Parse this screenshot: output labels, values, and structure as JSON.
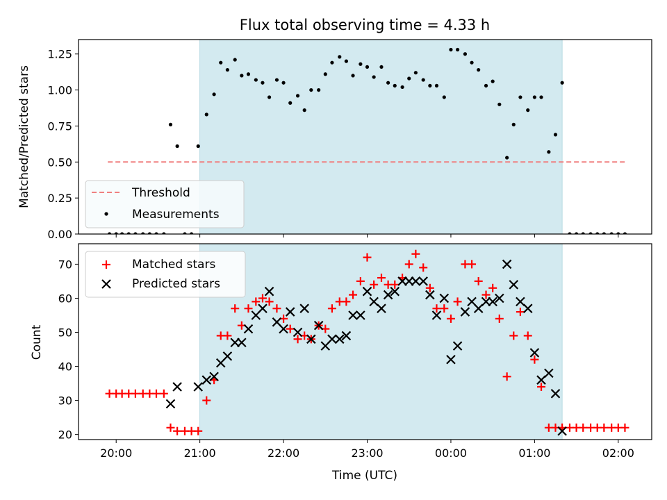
{
  "chart_data": [
    {
      "type": "scatter",
      "title": "Flux total observing time = 4.33 h",
      "ylabel": "Matched/Predicted stars",
      "ylim": [
        0,
        1.35
      ],
      "yticks": [
        "0.00",
        "0.25",
        "0.50",
        "0.75",
        "1.00",
        "1.25"
      ],
      "ytick_values": [
        0,
        0.25,
        0.5,
        0.75,
        1.0,
        1.25
      ],
      "shaded_span": {
        "x_start_hours": 21.0,
        "x_end_hours": 25.33,
        "color": "#d3eaf0"
      },
      "threshold": {
        "name": "Threshold",
        "y": 0.5,
        "x_range_hours": [
          19.9,
          26.1
        ],
        "color": "#f08080"
      },
      "legend": {
        "placement": "lower-left",
        "entries": [
          "Threshold",
          "Measurements"
        ]
      },
      "series": [
        {
          "name": "Measurements",
          "color": "#000000",
          "x_hours": [
            19.92,
            20.0,
            20.07,
            20.15,
            20.23,
            20.32,
            20.4,
            20.48,
            20.57,
            20.65,
            20.73,
            20.82,
            20.9,
            20.98,
            21.08,
            21.17,
            21.25,
            21.33,
            21.42,
            21.5,
            21.58,
            21.67,
            21.75,
            21.83,
            21.92,
            22.0,
            22.08,
            22.17,
            22.25,
            22.33,
            22.42,
            22.5,
            22.58,
            22.67,
            22.75,
            22.83,
            22.92,
            23.0,
            23.08,
            23.17,
            23.25,
            23.33,
            23.42,
            23.5,
            23.58,
            23.67,
            23.75,
            23.83,
            23.92,
            24.0,
            24.08,
            24.17,
            24.25,
            24.33,
            24.42,
            24.5,
            24.58,
            24.67,
            24.75,
            24.83,
            24.92,
            25.0,
            25.08,
            25.17,
            25.25,
            25.33,
            25.42,
            25.5,
            25.58,
            25.67,
            25.75,
            25.83,
            25.92,
            26.0,
            26.08
          ],
          "y": [
            0,
            0,
            0,
            0,
            0,
            0,
            0,
            0,
            0,
            0.76,
            0.61,
            0,
            0,
            0.61,
            0.83,
            0.97,
            1.19,
            1.14,
            1.21,
            1.1,
            1.11,
            1.07,
            1.05,
            0.95,
            1.07,
            1.05,
            0.91,
            0.96,
            0.86,
            1.0,
            1.0,
            1.11,
            1.19,
            1.23,
            1.2,
            1.1,
            1.18,
            1.16,
            1.09,
            1.16,
            1.05,
            1.03,
            1.02,
            1.08,
            1.12,
            1.07,
            1.03,
            1.03,
            0.95,
            1.28,
            1.28,
            1.25,
            1.19,
            1.14,
            1.03,
            1.06,
            0.9,
            0.53,
            0.76,
            0.95,
            0.86,
            0.95,
            0.95,
            0.57,
            0.69,
            1.05,
            0,
            0,
            0,
            0,
            0,
            0,
            0,
            0,
            0
          ]
        }
      ]
    },
    {
      "type": "scatter",
      "xlabel": "Time (UTC)",
      "ylabel": "Count",
      "ylim": [
        18.5,
        76
      ],
      "yticks": [
        "20",
        "30",
        "40",
        "50",
        "60",
        "70"
      ],
      "ytick_values": [
        20,
        30,
        40,
        50,
        60,
        70
      ],
      "xlim_hours": [
        19.55,
        26.4
      ],
      "xticks": [
        "20:00",
        "21:00",
        "22:00",
        "23:00",
        "00:00",
        "01:00",
        "02:00"
      ],
      "xtick_hours": [
        20,
        21,
        22,
        23,
        24,
        25,
        26
      ],
      "shaded_span": {
        "x_start_hours": 21.0,
        "x_end_hours": 25.33,
        "color": "#d3eaf0"
      },
      "legend": {
        "placement": "upper-left",
        "entries": [
          "Matched stars",
          "Predicted stars"
        ]
      },
      "series": [
        {
          "name": "Matched stars",
          "marker": "plus",
          "color": "#ff0000",
          "x_hours": [
            19.92,
            20.0,
            20.07,
            20.15,
            20.23,
            20.32,
            20.4,
            20.48,
            20.57,
            20.65,
            20.73,
            20.82,
            20.9,
            20.98,
            21.08,
            21.17,
            21.25,
            21.33,
            21.42,
            21.5,
            21.58,
            21.67,
            21.75,
            21.83,
            21.92,
            22.0,
            22.08,
            22.17,
            22.25,
            22.33,
            22.42,
            22.5,
            22.58,
            22.67,
            22.75,
            22.83,
            22.92,
            23.0,
            23.08,
            23.17,
            23.25,
            23.33,
            23.42,
            23.5,
            23.58,
            23.67,
            23.75,
            23.83,
            23.92,
            24.0,
            24.08,
            24.17,
            24.25,
            24.33,
            24.42,
            24.5,
            24.58,
            24.67,
            24.75,
            24.83,
            24.92,
            25.0,
            25.08,
            25.17,
            25.25,
            25.33,
            25.42,
            25.5,
            25.58,
            25.67,
            25.75,
            25.83,
            25.92,
            26.0,
            26.08
          ],
          "y": [
            32,
            32,
            32,
            32,
            32,
            32,
            32,
            32,
            32,
            22,
            21,
            21,
            21,
            21,
            30,
            36,
            49,
            49,
            57,
            52,
            57,
            59,
            60,
            59,
            57,
            54,
            51,
            48,
            49,
            48,
            52,
            51,
            57,
            59,
            59,
            61,
            65,
            72,
            64,
            66,
            64,
            64,
            66,
            70,
            73,
            69,
            63,
            57,
            57,
            54,
            59,
            70,
            70,
            65,
            61,
            63,
            54,
            37,
            49,
            56,
            49,
            42,
            34,
            22,
            22,
            22,
            22,
            22,
            22,
            22,
            22,
            22,
            22,
            22,
            22
          ]
        },
        {
          "name": "Predicted stars",
          "marker": "x",
          "color": "#000000",
          "x_hours": [
            20.65,
            20.73,
            20.98,
            21.08,
            21.17,
            21.25,
            21.33,
            21.42,
            21.5,
            21.58,
            21.67,
            21.75,
            21.83,
            21.92,
            22.0,
            22.08,
            22.17,
            22.25,
            22.33,
            22.42,
            22.5,
            22.58,
            22.67,
            22.75,
            22.83,
            22.92,
            23.0,
            23.08,
            23.17,
            23.25,
            23.33,
            23.42,
            23.5,
            23.58,
            23.67,
            23.75,
            23.83,
            23.92,
            24.0,
            24.08,
            24.17,
            24.25,
            24.33,
            24.42,
            24.5,
            24.58,
            24.67,
            24.75,
            24.83,
            24.92,
            25.0,
            25.08,
            25.17,
            25.25,
            25.33
          ],
          "y": [
            29,
            34,
            34,
            36,
            37,
            41,
            43,
            47,
            47,
            51,
            55,
            57,
            62,
            53,
            51,
            56,
            50,
            57,
            48,
            52,
            46,
            48,
            48,
            49,
            55,
            55,
            62,
            59,
            57,
            61,
            62,
            65,
            65,
            65,
            65,
            61,
            55,
            60,
            42,
            46,
            56,
            59,
            57,
            59,
            59,
            60,
            70,
            64,
            59,
            57,
            44,
            36,
            38,
            32,
            21
          ]
        }
      ]
    }
  ]
}
